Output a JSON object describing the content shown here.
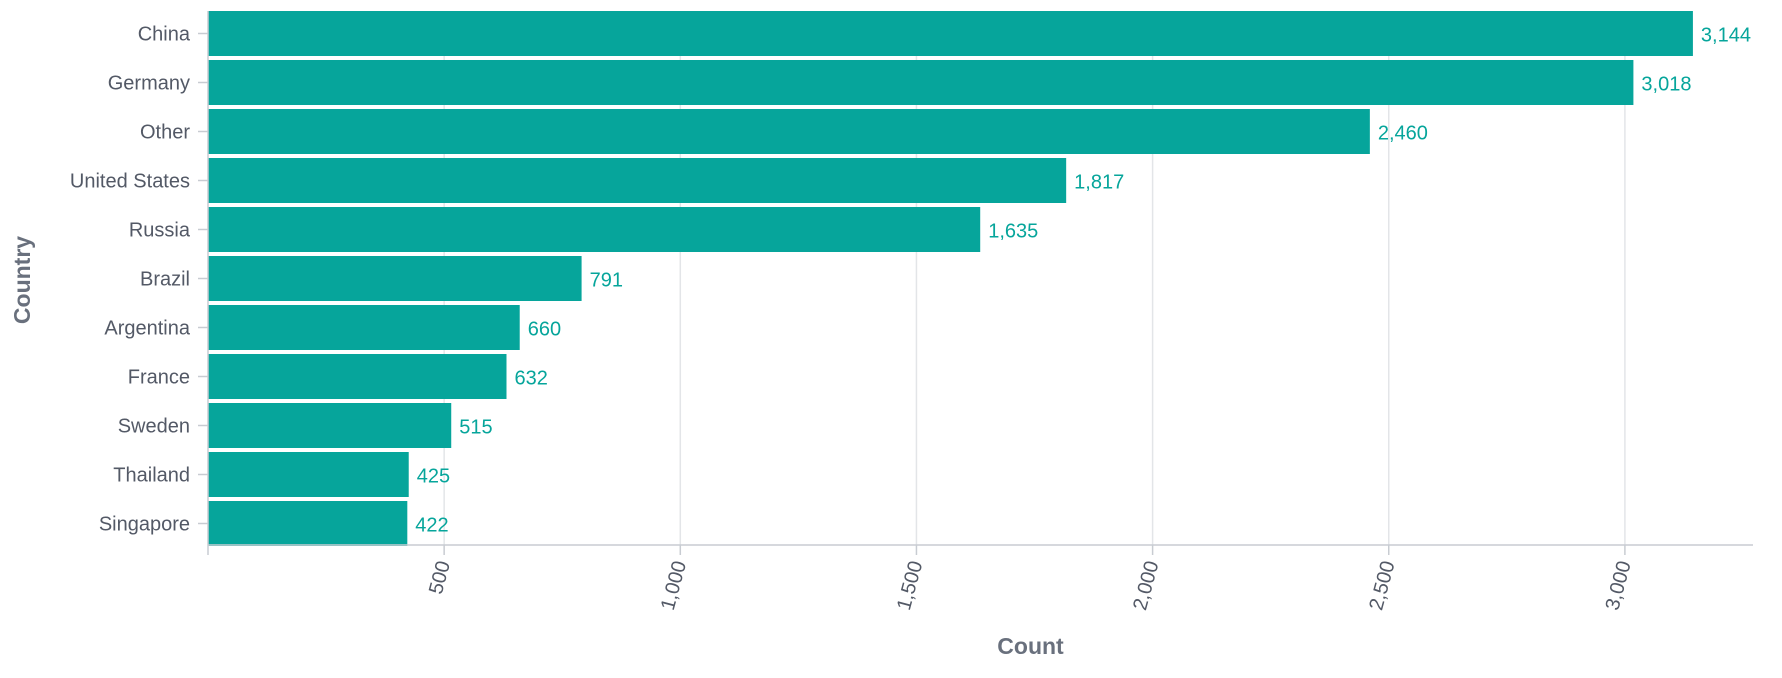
{
  "chart_data": {
    "type": "bar",
    "orientation": "horizontal",
    "title": "",
    "xlabel": "Count",
    "ylabel": "Country",
    "categories": [
      "China",
      "Germany",
      "Other",
      "United States",
      "Russia",
      "Brazil",
      "Argentina",
      "France",
      "Sweden",
      "Thailand",
      "Singapore"
    ],
    "values": [
      3144,
      3018,
      2460,
      1817,
      1635,
      791,
      660,
      632,
      515,
      425,
      422
    ],
    "value_labels": [
      "3,144",
      "3,018",
      "2,460",
      "1,817",
      "1,635",
      "791",
      "660",
      "632",
      "515",
      "425",
      "422"
    ],
    "x_ticks": [
      500,
      1000,
      1500,
      2000,
      2500,
      3000
    ],
    "x_tick_labels": [
      "500",
      "1,000",
      "1,500",
      "2,000",
      "2,500",
      "3,000"
    ],
    "xlim": [
      0,
      3300
    ],
    "grid": true,
    "legend": "none",
    "colors": {
      "bar": "#06a59b",
      "label": "#06a59b"
    }
  }
}
